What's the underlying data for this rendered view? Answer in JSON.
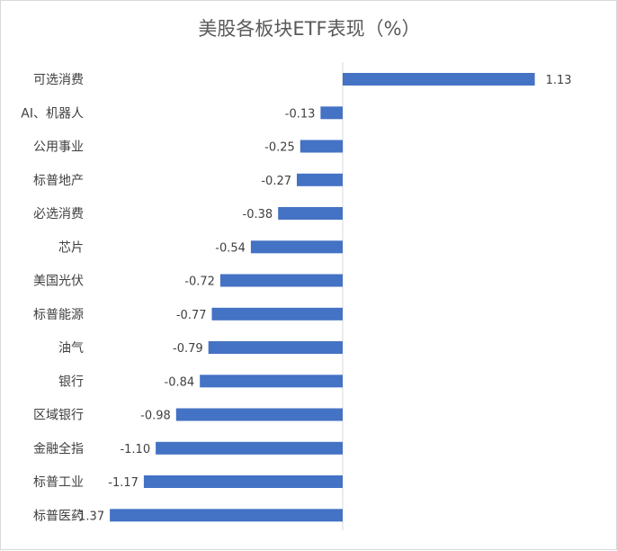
{
  "chart_data": {
    "type": "bar",
    "orientation": "horizontal",
    "title": "美股各板块ETF表现（%）",
    "xlabel": "",
    "ylabel": "",
    "categories": [
      "可选消费",
      "AI、机器人",
      "公用事业",
      "标普地产",
      "必选消费",
      "芯片",
      "美国光伏",
      "标普能源",
      "油气",
      "银行",
      "区域银行",
      "金融全指",
      "标普工业",
      "标普医药"
    ],
    "values": [
      1.13,
      -0.13,
      -0.25,
      -0.27,
      -0.38,
      -0.54,
      -0.72,
      -0.77,
      -0.79,
      -0.84,
      -0.98,
      -1.1,
      -1.17,
      -1.37
    ],
    "value_labels": [
      "1.13",
      "-0.13",
      "-0.25",
      "-0.27",
      "-0.38",
      "-0.54",
      "-0.72",
      "-0.77",
      "-0.79",
      "-0.84",
      "-0.98",
      "-1.10",
      "-1.17",
      "-1.37"
    ],
    "bar_color": "#4472c4",
    "grid": false,
    "legend": "none"
  }
}
